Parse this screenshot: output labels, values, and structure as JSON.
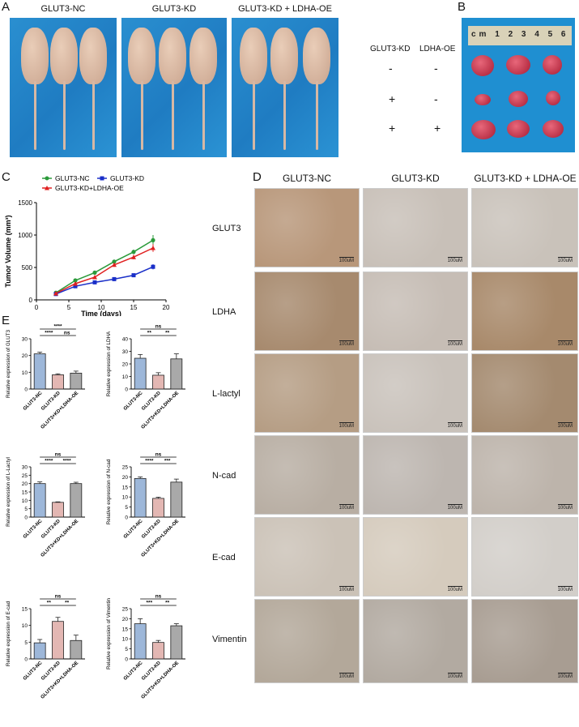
{
  "panel_labels": {
    "a": "A",
    "b": "B",
    "c": "C",
    "d": "D",
    "e": "E"
  },
  "panelA": {
    "groups": [
      "GLUT3-NC",
      "GLUT3-KD",
      "GLUT3-KD + LDHA-OE"
    ]
  },
  "panelB": {
    "col_headers": [
      "GLUT3-KD",
      "LDHA-OE"
    ],
    "rows": [
      [
        "-",
        "-"
      ],
      [
        "+",
        "-"
      ],
      [
        "+",
        "+"
      ]
    ],
    "ruler_text": "cm 1 2 3 4 5 6"
  },
  "panelD": {
    "columns": [
      "GLUT3-NC",
      "GLUT3-KD",
      "GLUT3-KD + LDHA-OE"
    ],
    "rows": [
      "GLUT3",
      "LDHA",
      "L-lactyl",
      "N-cad",
      "E-cad",
      "Vimentin"
    ],
    "scale_bar": "100uM",
    "tones": [
      [
        "#b8977a",
        "#c8c0b8",
        "#c9c2ba"
      ],
      [
        "#a78a6e",
        "#c6bdb5",
        "#a8896a"
      ],
      [
        "#b59d84",
        "#c9c2bb",
        "#a48a6f"
      ],
      [
        "#b8aea3",
        "#bdb6b0",
        "#bdb4ab"
      ],
      [
        "#cbc2b7",
        "#d5cbbd",
        "#d2cec9"
      ],
      [
        "#b3a89a",
        "#b2aaa1",
        "#a89d92"
      ]
    ],
    "colors": {
      "cell_border": "#cccccc"
    }
  },
  "chart_data": [
    {
      "type": "line",
      "panel": "C",
      "title": "",
      "xlabel": "Time (days)",
      "ylabel": "Tumor Volume (mm³)",
      "xlim": [
        0,
        20
      ],
      "ylim": [
        0,
        1500
      ],
      "xticks": [
        0,
        5,
        10,
        15,
        20
      ],
      "yticks": [
        0,
        500,
        1000,
        1500
      ],
      "x": [
        3,
        6,
        9,
        12,
        15,
        18
      ],
      "series": [
        {
          "name": "GLUT3-NC",
          "color": "#2a9a3a",
          "marker": "circle",
          "values": [
            110,
            300,
            420,
            590,
            740,
            920
          ],
          "err": [
            15,
            25,
            30,
            30,
            35,
            80
          ]
        },
        {
          "name": "GLUT3-KD",
          "color": "#1a2fc8",
          "marker": "square",
          "values": [
            90,
            210,
            270,
            320,
            380,
            510
          ],
          "err": [
            10,
            15,
            20,
            20,
            25,
            40
          ]
        },
        {
          "name": "GLUT3-KD+LDHA-OE",
          "color": "#e02020",
          "marker": "triangle",
          "values": [
            100,
            250,
            350,
            540,
            660,
            800
          ],
          "err": [
            12,
            20,
            25,
            30,
            35,
            60
          ]
        }
      ],
      "legend": "top"
    },
    {
      "type": "bar",
      "panel": "E",
      "ylabel": "Relative expression of GLUT3",
      "categories": [
        "GLUT3-NC",
        "GLUT3-KD",
        "GLUT3+KD+LDHA-OE"
      ],
      "values": [
        21,
        8.5,
        9.5
      ],
      "err": [
        1.0,
        0.6,
        1.2
      ],
      "ylim": [
        0,
        30
      ],
      "yticks": [
        0,
        10,
        20,
        30
      ],
      "sig": [
        {
          "from": 0,
          "to": 1,
          "label": "****"
        },
        {
          "from": 1,
          "to": 2,
          "label": "ns"
        },
        {
          "from": 0,
          "to": 2,
          "label": "****"
        }
      ]
    },
    {
      "type": "bar",
      "panel": "E",
      "ylabel": "Relative expression of LDHA",
      "categories": [
        "GLUT3-NC",
        "GLUT3-KD",
        "GLUT3+KD+LDHA-OE"
      ],
      "values": [
        24.5,
        11,
        24
      ],
      "err": [
        3,
        2,
        4
      ],
      "ylim": [
        0,
        40
      ],
      "yticks": [
        0,
        10,
        20,
        30,
        40
      ],
      "sig": [
        {
          "from": 0,
          "to": 1,
          "label": "**"
        },
        {
          "from": 1,
          "to": 2,
          "label": "**"
        },
        {
          "from": 0,
          "to": 2,
          "label": "ns"
        }
      ]
    },
    {
      "type": "bar",
      "panel": "E",
      "ylabel": "Relative expression of L-Lactyl",
      "categories": [
        "GLUT3-NC",
        "GLUT3-KD",
        "GLUT3+KD+LDHA-OE"
      ],
      "values": [
        20,
        8.8,
        20
      ],
      "err": [
        1.0,
        0.3,
        0.8
      ],
      "ylim": [
        0,
        30
      ],
      "yticks": [
        0,
        5,
        10,
        15,
        20,
        25,
        30
      ],
      "sig": [
        {
          "from": 0,
          "to": 1,
          "label": "****"
        },
        {
          "from": 1,
          "to": 2,
          "label": "****"
        },
        {
          "from": 0,
          "to": 2,
          "label": "ns"
        }
      ]
    },
    {
      "type": "bar",
      "panel": "E",
      "ylabel": "Relative expression of N-cad",
      "categories": [
        "GLUT3-NC",
        "GLUT3-KD",
        "GLUT3+KD+LDHA-OE"
      ],
      "values": [
        19.2,
        9.3,
        17.4
      ],
      "err": [
        0.8,
        0.6,
        1.5
      ],
      "ylim": [
        0,
        25
      ],
      "yticks": [
        0,
        5,
        10,
        15,
        20,
        25
      ],
      "sig": [
        {
          "from": 0,
          "to": 1,
          "label": "****"
        },
        {
          "from": 1,
          "to": 2,
          "label": "***"
        },
        {
          "from": 0,
          "to": 2,
          "label": "ns"
        }
      ]
    },
    {
      "type": "bar",
      "panel": "E",
      "ylabel": "Relative expression of E-cad",
      "categories": [
        "GLUT3-NC",
        "GLUT3-KD",
        "GLUT3+KD+LDHA-OE"
      ],
      "values": [
        4.8,
        11.2,
        5.5
      ],
      "err": [
        1.0,
        1.2,
        1.6
      ],
      "ylim": [
        0,
        15
      ],
      "yticks": [
        0,
        5,
        10,
        15
      ],
      "sig": [
        {
          "from": 0,
          "to": 1,
          "label": "**"
        },
        {
          "from": 1,
          "to": 2,
          "label": "**"
        },
        {
          "from": 0,
          "to": 2,
          "label": "ns"
        }
      ]
    },
    {
      "type": "bar",
      "panel": "E",
      "ylabel": "Relative expression of Vimentin",
      "categories": [
        "GLUT3-NC",
        "GLUT3-KD",
        "GLUT3+KD+LDHA-OE"
      ],
      "values": [
        17.5,
        8.2,
        16.5
      ],
      "err": [
        2.5,
        1.0,
        1.0
      ],
      "ylim": [
        0,
        25
      ],
      "yticks": [
        0,
        5,
        10,
        15,
        20,
        25
      ],
      "sig": [
        {
          "from": 0,
          "to": 1,
          "label": "***"
        },
        {
          "from": 1,
          "to": 2,
          "label": "**"
        },
        {
          "from": 0,
          "to": 2,
          "label": "ns"
        }
      ]
    }
  ],
  "bar_colors": [
    "#9db7d9",
    "#e3b7b3",
    "#a9a9a9"
  ]
}
